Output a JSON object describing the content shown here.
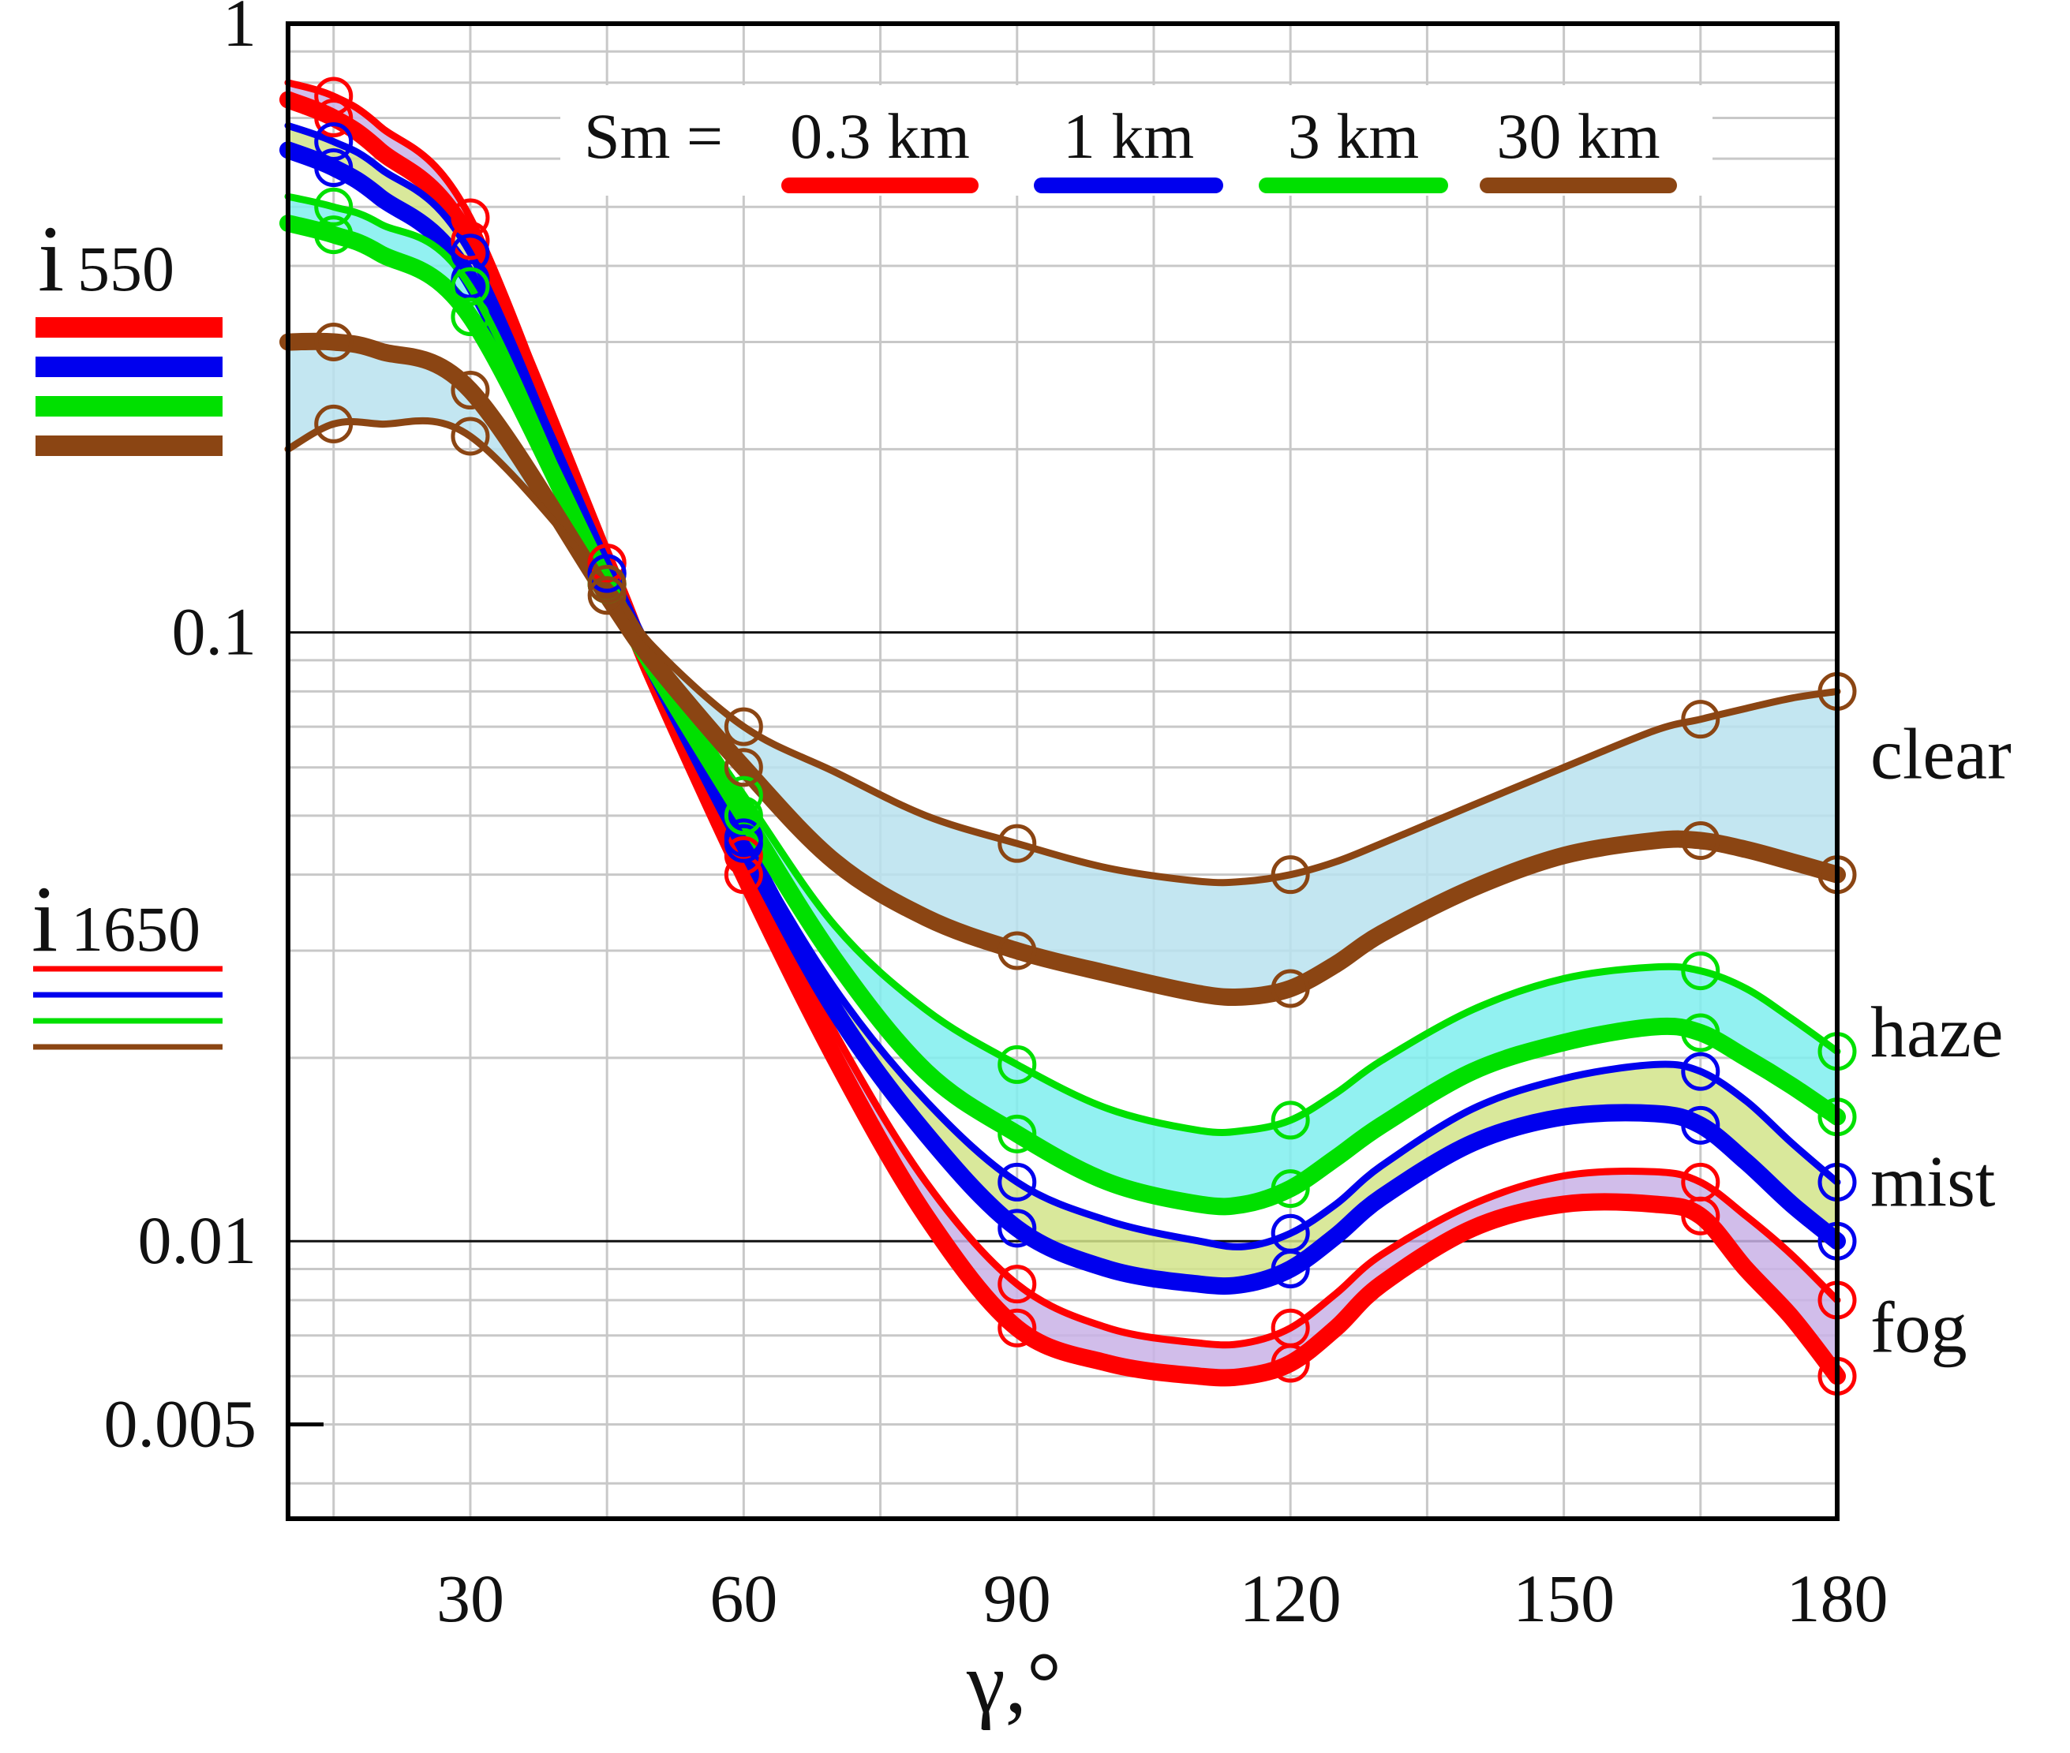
{
  "chart_data": {
    "type": "line",
    "title": "",
    "xlabel": "γ,°",
    "ylabel_series": [
      {
        "main": "i",
        "sub": "550"
      },
      {
        "main": "i",
        "sub": "1650"
      }
    ],
    "xlim": [
      10,
      180
    ],
    "ylim": [
      0.0035,
      1
    ],
    "yscale": "log",
    "x_ticks": [
      30,
      60,
      90,
      120,
      150,
      180
    ],
    "x_tick_labels": [
      "30",
      "60",
      "90",
      "120",
      "150",
      "180"
    ],
    "y_ticks": [
      1,
      0.1,
      0.01,
      0.005
    ],
    "y_tick_labels": [
      "1",
      "0.1",
      "0.01",
      "0.005"
    ],
    "grid": true,
    "legend": {
      "prefix": "Sm =",
      "placement": "top-right",
      "entries": [
        {
          "label": "0.3 km",
          "color": "#ff0000"
        },
        {
          "label": "1 km",
          "color": "#0000ee"
        },
        {
          "label": "3 km",
          "color": "#00e000"
        },
        {
          "label": "30 km",
          "color": "#8b4513"
        }
      ]
    },
    "regions": [
      {
        "label": "clear",
        "y": 0.063,
        "fill": "#b8e2ee",
        "upper": "brown-1650",
        "lower": "brown-550"
      },
      {
        "label": "haze",
        "y": 0.022,
        "fill": "#7feeee",
        "upper": "green-1650",
        "lower": "green-550"
      },
      {
        "label": "mist",
        "y": 0.0125,
        "fill": "#d2e48a",
        "upper": "blue-1650",
        "lower": "blue-550"
      },
      {
        "label": "fog",
        "y": 0.0072,
        "fill": "#c9b2e6",
        "upper": "red-1650",
        "lower": "red-550"
      }
    ],
    "marker_x": [
      15,
      30,
      45,
      60,
      90,
      120,
      165,
      180
    ],
    "series": [
      {
        "id": "red-550",
        "name": "i550, Sm = 0.3 km",
        "color": "#ff0000",
        "width": "thick",
        "x": [
          10,
          15,
          20,
          30,
          45,
          50,
          60,
          70,
          80,
          90,
          100,
          110,
          115,
          120,
          125,
          130,
          140,
          150,
          160,
          165,
          170,
          175,
          180
        ],
        "y": [
          0.75,
          0.7,
          0.62,
          0.44,
          0.13,
          0.085,
          0.04,
          0.02,
          0.011,
          0.0072,
          0.0063,
          0.006,
          0.006,
          0.0063,
          0.0072,
          0.0085,
          0.0105,
          0.0115,
          0.0115,
          0.011,
          0.009,
          0.0075,
          0.006
        ]
      },
      {
        "id": "red-1650",
        "name": "i1650, Sm = 0.3 km",
        "color": "#ff0000",
        "width": "thin",
        "x": [
          10,
          15,
          20,
          30,
          45,
          50,
          60,
          70,
          80,
          90,
          100,
          110,
          115,
          120,
          125,
          130,
          140,
          150,
          160,
          165,
          170,
          175,
          180
        ],
        "y": [
          0.8,
          0.76,
          0.68,
          0.48,
          0.13,
          0.088,
          0.043,
          0.022,
          0.0125,
          0.0085,
          0.0072,
          0.0068,
          0.0068,
          0.0072,
          0.0082,
          0.0095,
          0.0115,
          0.0128,
          0.013,
          0.0125,
          0.011,
          0.0095,
          0.008
        ]
      },
      {
        "id": "blue-550",
        "name": "i550, Sm = 1 km",
        "color": "#0000ee",
        "width": "thick",
        "x": [
          10,
          15,
          20,
          30,
          45,
          50,
          60,
          70,
          80,
          90,
          100,
          110,
          115,
          120,
          125,
          130,
          140,
          150,
          160,
          165,
          170,
          175,
          180
        ],
        "y": [
          0.62,
          0.58,
          0.52,
          0.38,
          0.125,
          0.088,
          0.045,
          0.024,
          0.015,
          0.0105,
          0.009,
          0.0085,
          0.0085,
          0.009,
          0.0102,
          0.0118,
          0.0145,
          0.016,
          0.0162,
          0.0155,
          0.0135,
          0.0115,
          0.01
        ]
      },
      {
        "id": "blue-1650",
        "name": "i1650, Sm = 1 km",
        "color": "#0000ee",
        "width": "thin",
        "x": [
          10,
          15,
          20,
          30,
          45,
          50,
          60,
          70,
          80,
          90,
          100,
          110,
          115,
          120,
          125,
          130,
          140,
          150,
          160,
          165,
          170,
          175,
          180
        ],
        "y": [
          0.68,
          0.64,
          0.58,
          0.42,
          0.125,
          0.088,
          0.046,
          0.026,
          0.017,
          0.0125,
          0.0108,
          0.01,
          0.0098,
          0.0103,
          0.0115,
          0.0133,
          0.0165,
          0.0185,
          0.0195,
          0.019,
          0.017,
          0.0145,
          0.0125
        ]
      },
      {
        "id": "green-550",
        "name": "i550, Sm = 3 km",
        "color": "#00e000",
        "width": "thick",
        "x": [
          10,
          15,
          20,
          30,
          45,
          50,
          60,
          70,
          80,
          90,
          100,
          110,
          115,
          120,
          125,
          130,
          140,
          150,
          160,
          165,
          170,
          175,
          180
        ],
        "y": [
          0.47,
          0.45,
          0.42,
          0.33,
          0.12,
          0.088,
          0.05,
          0.029,
          0.019,
          0.015,
          0.0125,
          0.0115,
          0.0115,
          0.0122,
          0.0137,
          0.0155,
          0.019,
          0.0212,
          0.0225,
          0.022,
          0.02,
          0.018,
          0.016
        ]
      },
      {
        "id": "green-1650",
        "name": "i1650, Sm = 3 km",
        "color": "#00e000",
        "width": "thin",
        "x": [
          10,
          15,
          20,
          30,
          45,
          50,
          60,
          70,
          80,
          90,
          100,
          110,
          115,
          120,
          125,
          130,
          140,
          150,
          160,
          165,
          170,
          175,
          180
        ],
        "y": [
          0.52,
          0.5,
          0.47,
          0.37,
          0.12,
          0.09,
          0.054,
          0.033,
          0.024,
          0.0195,
          0.0165,
          0.0152,
          0.0152,
          0.0158,
          0.0175,
          0.0198,
          0.024,
          0.027,
          0.0282,
          0.0278,
          0.026,
          0.0232,
          0.0205
        ]
      },
      {
        "id": "brown-550",
        "name": "i550, Sm = 30 km",
        "color": "#8b4513",
        "width": "thick",
        "x": [
          10,
          15,
          20,
          30,
          45,
          50,
          60,
          70,
          80,
          90,
          100,
          110,
          115,
          120,
          125,
          130,
          140,
          150,
          160,
          165,
          170,
          175,
          180
        ],
        "y": [
          0.3,
          0.3,
          0.29,
          0.25,
          0.115,
          0.09,
          0.06,
          0.042,
          0.034,
          0.03,
          0.0275,
          0.0255,
          0.0252,
          0.026,
          0.0285,
          0.032,
          0.038,
          0.043,
          0.0455,
          0.0455,
          0.044,
          0.042,
          0.04
        ]
      },
      {
        "id": "brown-1650",
        "name": "i1650, Sm = 30 km",
        "color": "#8b4513",
        "width": "thin",
        "x": [
          10,
          15,
          20,
          30,
          45,
          50,
          60,
          70,
          80,
          90,
          100,
          110,
          115,
          120,
          125,
          130,
          140,
          150,
          160,
          165,
          170,
          175,
          180
        ],
        "y": [
          0.2,
          0.22,
          0.22,
          0.21,
          0.12,
          0.095,
          0.07,
          0.059,
          0.05,
          0.045,
          0.041,
          0.039,
          0.039,
          0.04,
          0.042,
          0.045,
          0.052,
          0.06,
          0.069,
          0.072,
          0.075,
          0.078,
          0.08
        ]
      }
    ]
  }
}
